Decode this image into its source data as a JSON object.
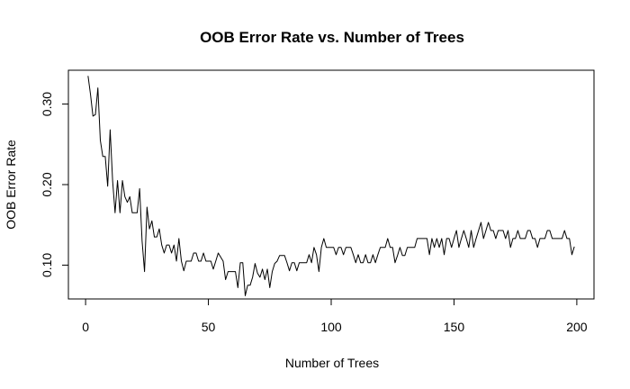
{
  "chart_data": {
    "type": "line",
    "title": "OOB Error Rate vs. Number of Trees",
    "xlabel": "Number of Trees",
    "ylabel": "OOB Error Rate",
    "xlim": [
      -7,
      207
    ],
    "ylim": [
      0.058,
      0.342
    ],
    "x_ticks": [
      0,
      50,
      100,
      150,
      200
    ],
    "x_tick_labels": [
      "0",
      "50",
      "100",
      "150",
      "200"
    ],
    "y_ticks": [
      0.1,
      0.2,
      0.3
    ],
    "y_tick_labels": [
      "0.10",
      "0.20",
      "0.30"
    ],
    "grid": false,
    "legend": "none",
    "line_color": "#000000",
    "series": [
      {
        "values": [
          0.335,
          0.312,
          0.285,
          0.287,
          0.32,
          0.255,
          0.235,
          0.235,
          0.198,
          0.268,
          0.205,
          0.165,
          0.205,
          0.165,
          0.205,
          0.185,
          0.178,
          0.185,
          0.165,
          0.165,
          0.165,
          0.195,
          0.13,
          0.092,
          0.172,
          0.145,
          0.155,
          0.135,
          0.135,
          0.145,
          0.125,
          0.115,
          0.125,
          0.125,
          0.115,
          0.125,
          0.105,
          0.133,
          0.105,
          0.093,
          0.105,
          0.105,
          0.105,
          0.115,
          0.115,
          0.105,
          0.105,
          0.115,
          0.105,
          0.105,
          0.105,
          0.095,
          0.105,
          0.115,
          0.11,
          0.105,
          0.082,
          0.092,
          0.092,
          0.092,
          0.092,
          0.072,
          0.103,
          0.103,
          0.062,
          0.075,
          0.075,
          0.085,
          0.102,
          0.09,
          0.085,
          0.095,
          0.082,
          0.095,
          0.072,
          0.092,
          0.102,
          0.105,
          0.112,
          0.112,
          0.112,
          0.103,
          0.093,
          0.103,
          0.103,
          0.093,
          0.103,
          0.103,
          0.103,
          0.103,
          0.113,
          0.103,
          0.122,
          0.113,
          0.092,
          0.122,
          0.133,
          0.122,
          0.122,
          0.122,
          0.122,
          0.113,
          0.122,
          0.122,
          0.113,
          0.122,
          0.122,
          0.122,
          0.113,
          0.103,
          0.113,
          0.103,
          0.103,
          0.113,
          0.103,
          0.103,
          0.113,
          0.103,
          0.113,
          0.122,
          0.122,
          0.122,
          0.133,
          0.122,
          0.122,
          0.103,
          0.112,
          0.122,
          0.112,
          0.112,
          0.122,
          0.122,
          0.122,
          0.122,
          0.133,
          0.133,
          0.133,
          0.133,
          0.133,
          0.113,
          0.133,
          0.122,
          0.133,
          0.122,
          0.133,
          0.113,
          0.133,
          0.133,
          0.122,
          0.133,
          0.143,
          0.122,
          0.133,
          0.143,
          0.133,
          0.122,
          0.143,
          0.122,
          0.133,
          0.143,
          0.153,
          0.133,
          0.143,
          0.153,
          0.143,
          0.143,
          0.133,
          0.143,
          0.143,
          0.143,
          0.133,
          0.143,
          0.122,
          0.133,
          0.133,
          0.143,
          0.133,
          0.133,
          0.133,
          0.143,
          0.143,
          0.133,
          0.133,
          0.122,
          0.133,
          0.133,
          0.133,
          0.143,
          0.143,
          0.133,
          0.133,
          0.133,
          0.133,
          0.133,
          0.143,
          0.133,
          0.133,
          0.113,
          0.123
        ]
      }
    ]
  }
}
